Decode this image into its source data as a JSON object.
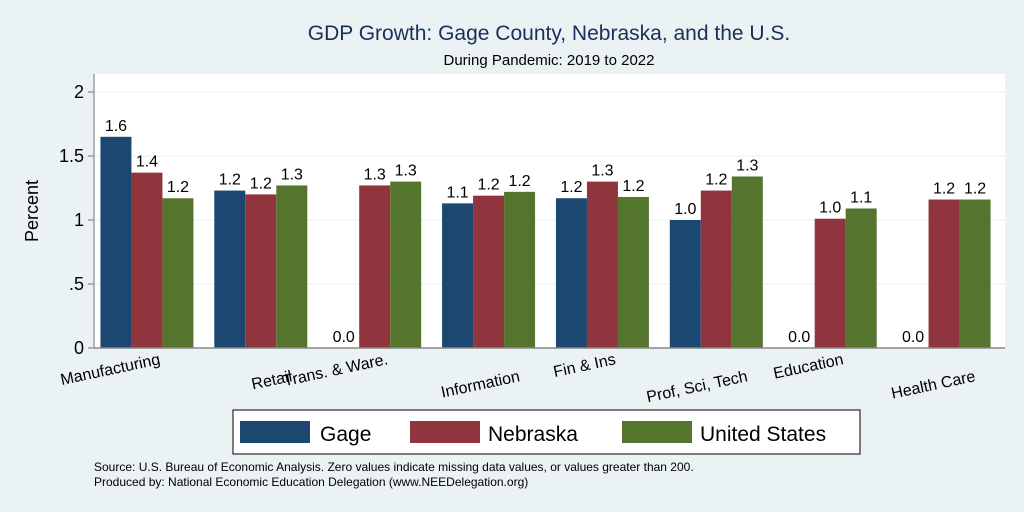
{
  "chart_data": {
    "type": "bar",
    "title": "GDP Growth: Gage County, Nebraska, and the U.S.",
    "subtitle": "During Pandemic: 2019 to 2022",
    "xlabel": "",
    "ylabel": "Percent",
    "ylim": [
      0,
      2.15
    ],
    "yticks": [
      0,
      0.5,
      1,
      1.5,
      2
    ],
    "ytick_labels": [
      "0",
      ".5",
      "1",
      "1.5",
      "2"
    ],
    "grid": true,
    "categories": [
      "Manufacturing",
      "Retail",
      "Trans. & Ware.",
      "Information",
      "Fin & Ins",
      "Prof, Sci, Tech",
      "Education",
      "Health Care"
    ],
    "series": [
      {
        "name": "Gage",
        "color": "#1c4770",
        "values": [
          1.65,
          1.23,
          0.0,
          1.13,
          1.17,
          1.0,
          0.0,
          0.0
        ],
        "labels": [
          "1.6",
          "1.2",
          "0.0",
          "1.1",
          "1.2",
          "1.0",
          "0.0",
          "0.0"
        ]
      },
      {
        "name": "Nebraska",
        "color": "#90353d",
        "values": [
          1.37,
          1.2,
          1.27,
          1.19,
          1.3,
          1.23,
          1.01,
          1.16
        ],
        "labels": [
          "1.4",
          "1.2",
          "1.3",
          "1.2",
          "1.3",
          "1.2",
          "1.0",
          "1.2"
        ]
      },
      {
        "name": "United States",
        "color": "#55752f",
        "values": [
          1.17,
          1.27,
          1.3,
          1.22,
          1.18,
          1.34,
          1.09,
          1.16
        ],
        "labels": [
          "1.2",
          "1.3",
          "1.3",
          "1.2",
          "1.2",
          "1.3",
          "1.1",
          "1.2"
        ]
      }
    ],
    "legend_position": "bottom",
    "notes": [
      "Source: U.S. Bureau of Economic Analysis. Zero values indicate missing data values, or values greater than 200.",
      "Produced by: National Economic Education Delegation (www.NEEDelegation.org)"
    ],
    "colors": {
      "background": "#eaf2f3",
      "plot_background": "#ffffff",
      "grid": "#eaf2f3",
      "title": "#1a2f5a"
    }
  }
}
